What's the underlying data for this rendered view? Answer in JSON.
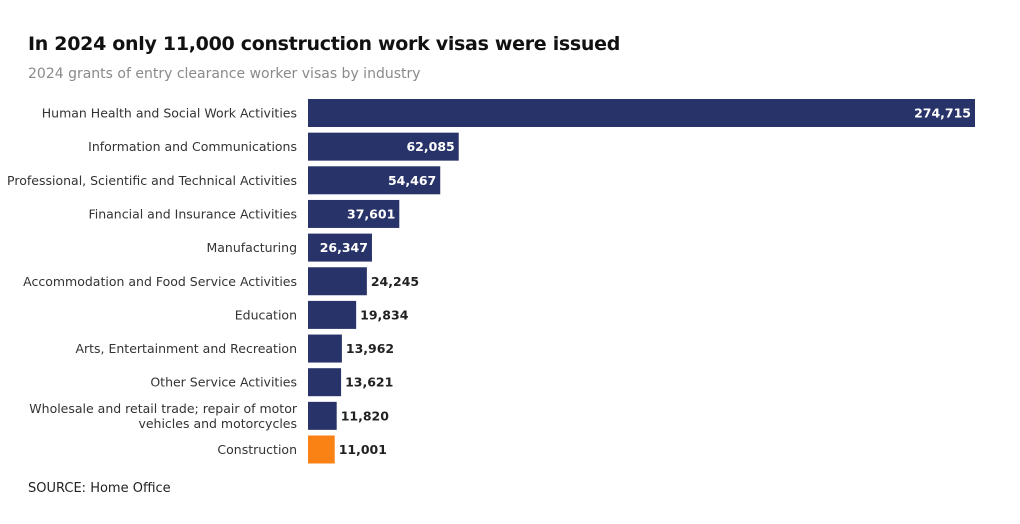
{
  "chart_data": {
    "type": "bar",
    "orientation": "horizontal",
    "title": "In 2024 only 11,000 construction work visas were issued",
    "subtitle": "2024 grants of entry clearance worker visas by industry",
    "source": "SOURCE: Home Office",
    "categories": [
      [
        "Human Health and Social Work Activities"
      ],
      [
        "Information and Communications"
      ],
      [
        "Professional, Scientific and Technical Activities"
      ],
      [
        "Financial and Insurance Activities"
      ],
      [
        "Manufacturing"
      ],
      [
        "Accommodation and Food Service Activities"
      ],
      [
        "Education"
      ],
      [
        "Arts, Entertainment and Recreation"
      ],
      [
        "Other Service Activities"
      ],
      [
        "Wholesale and retail trade; repair of motor",
        "vehicles and motorcycles"
      ],
      [
        "Construction"
      ]
    ],
    "values": [
      274715,
      62085,
      54467,
      37601,
      26347,
      24245,
      19834,
      13962,
      13621,
      11820,
      11001
    ],
    "value_labels": [
      "274,715",
      "62,085",
      "54,467",
      "37,601",
      "26,347",
      "24,245",
      "19,834",
      "13,962",
      "13,621",
      "11,820",
      "11,001"
    ],
    "highlight_index": 10,
    "colors": {
      "bar": "#283469",
      "highlight": "#fa8214"
    },
    "xlim": [
      0,
      274715
    ],
    "grid": false,
    "legend": "none"
  }
}
